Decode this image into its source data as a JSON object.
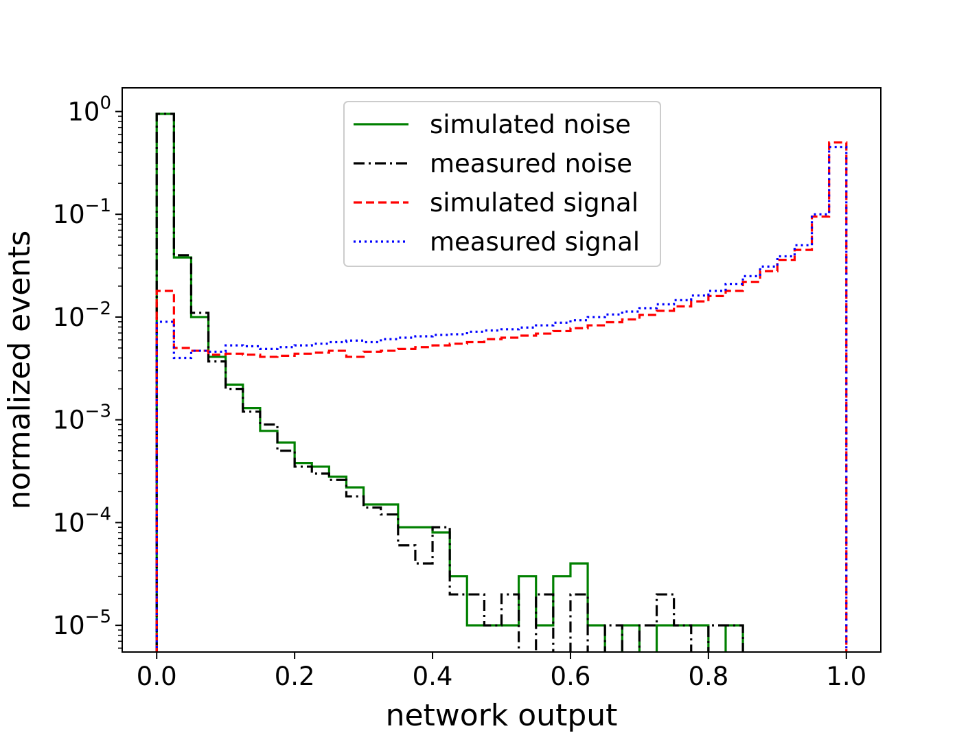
{
  "chart_data": {
    "type": "histogram-step",
    "title": "",
    "xlabel": "network output",
    "ylabel": "normalized events",
    "xlim": [
      -0.05,
      1.05
    ],
    "ylim": [
      5.5e-06,
      1.7
    ],
    "yscale": "log",
    "grid": false,
    "legend_position": "top-center",
    "x_ticks": [
      0.0,
      0.2,
      0.4,
      0.6,
      0.8,
      1.0
    ],
    "x_tick_labels": [
      "0.0",
      "0.2",
      "0.4",
      "0.6",
      "0.8",
      "1.0"
    ],
    "y_ticks": [
      {
        "value": 1,
        "base": "10",
        "exp": "0"
      },
      {
        "value": 0.1,
        "base": "10",
        "exp": "−1"
      },
      {
        "value": 0.01,
        "base": "10",
        "exp": "−2"
      },
      {
        "value": 0.001,
        "base": "10",
        "exp": "−3"
      },
      {
        "value": 0.0001,
        "base": "10",
        "exp": "−4"
      },
      {
        "value": 1e-05,
        "base": "10",
        "exp": "−5"
      }
    ],
    "series": [
      {
        "name": "simulated noise",
        "color": "#008000",
        "dash": "solid",
        "bin_edges": [
          0,
          0.025,
          0.05,
          0.075,
          0.1,
          0.125,
          0.15,
          0.175,
          0.2,
          0.225,
          0.25,
          0.275,
          0.3,
          0.325,
          0.35,
          0.375,
          0.4,
          0.425,
          0.45,
          0.475,
          0.5,
          0.525,
          0.55,
          0.575,
          0.6,
          0.625,
          0.65,
          0.675,
          0.7,
          0.725,
          0.75,
          0.775,
          0.8,
          0.825,
          0.85
        ],
        "values": [
          0.95,
          0.038,
          0.01,
          0.0041,
          0.0022,
          0.0013,
          0.00078,
          0.0006,
          0.00038,
          0.00035,
          0.00028,
          0.00022,
          0.00015,
          0.00015,
          9e-05,
          9e-05,
          8e-05,
          3e-05,
          1e-05,
          1e-05,
          1e-05,
          3e-05,
          1e-05,
          3e-05,
          4e-05,
          1e-05,
          0,
          1e-05,
          0,
          1e-05,
          1e-05,
          1e-05,
          0,
          1e-05
        ]
      },
      {
        "name": "measured noise",
        "color": "#000000",
        "dash": "dashdot",
        "bin_edges": [
          0,
          0.025,
          0.05,
          0.075,
          0.1,
          0.125,
          0.15,
          0.175,
          0.2,
          0.225,
          0.25,
          0.275,
          0.3,
          0.325,
          0.35,
          0.375,
          0.4,
          0.425,
          0.45,
          0.475,
          0.5,
          0.525,
          0.55,
          0.575,
          0.6,
          0.625,
          0.65,
          0.675,
          0.7,
          0.725,
          0.75,
          0.775,
          0.8,
          0.825,
          0.85
        ],
        "values": [
          0.95,
          0.04,
          0.011,
          0.0037,
          0.002,
          0.0012,
          0.0009,
          0.0005,
          0.00035,
          0.0003,
          0.00026,
          0.00018,
          0.00014,
          0.00012,
          6e-05,
          4e-05,
          9e-05,
          2e-05,
          2e-05,
          1e-05,
          2e-05,
          0,
          2e-05,
          0,
          2e-05,
          0,
          1e-05,
          0,
          1e-05,
          2e-05,
          1e-05,
          0,
          1e-05,
          1e-05
        ]
      },
      {
        "name": "simulated signal",
        "color": "#ff0000",
        "dash": "dashed",
        "bin_edges": [
          0,
          0.025,
          0.05,
          0.075,
          0.1,
          0.125,
          0.15,
          0.175,
          0.2,
          0.225,
          0.25,
          0.275,
          0.3,
          0.325,
          0.35,
          0.375,
          0.4,
          0.425,
          0.45,
          0.475,
          0.5,
          0.525,
          0.55,
          0.575,
          0.6,
          0.625,
          0.65,
          0.675,
          0.7,
          0.725,
          0.75,
          0.775,
          0.8,
          0.825,
          0.85,
          0.875,
          0.9,
          0.925,
          0.95,
          0.975,
          1.0
        ],
        "values": [
          0.018,
          0.005,
          0.0047,
          0.0043,
          0.0044,
          0.0043,
          0.0041,
          0.0042,
          0.0044,
          0.0045,
          0.0047,
          0.0041,
          0.0046,
          0.0047,
          0.0049,
          0.0051,
          0.0053,
          0.0055,
          0.0057,
          0.0061,
          0.0063,
          0.0066,
          0.0069,
          0.0073,
          0.0078,
          0.0083,
          0.0089,
          0.0095,
          0.0105,
          0.0115,
          0.0127,
          0.0142,
          0.016,
          0.018,
          0.022,
          0.028,
          0.036,
          0.045,
          0.095,
          0.5
        ]
      },
      {
        "name": "measured signal",
        "color": "#0000ff",
        "dash": "dotted",
        "bin_edges": [
          0,
          0.025,
          0.05,
          0.075,
          0.1,
          0.125,
          0.15,
          0.175,
          0.2,
          0.225,
          0.25,
          0.275,
          0.3,
          0.325,
          0.35,
          0.375,
          0.4,
          0.425,
          0.45,
          0.475,
          0.5,
          0.525,
          0.55,
          0.575,
          0.6,
          0.625,
          0.65,
          0.675,
          0.7,
          0.725,
          0.75,
          0.775,
          0.8,
          0.825,
          0.85,
          0.875,
          0.9,
          0.925,
          0.95,
          0.975,
          1.0
        ],
        "values": [
          0.009,
          0.004,
          0.0047,
          0.0046,
          0.0053,
          0.0052,
          0.0049,
          0.0051,
          0.0053,
          0.0055,
          0.0057,
          0.0059,
          0.0057,
          0.0061,
          0.0063,
          0.0065,
          0.0067,
          0.0068,
          0.0072,
          0.0074,
          0.0076,
          0.0079,
          0.0083,
          0.0088,
          0.0093,
          0.01,
          0.0106,
          0.0113,
          0.0122,
          0.0133,
          0.0146,
          0.0162,
          0.018,
          0.021,
          0.025,
          0.031,
          0.039,
          0.05,
          0.1,
          0.45
        ]
      }
    ]
  }
}
